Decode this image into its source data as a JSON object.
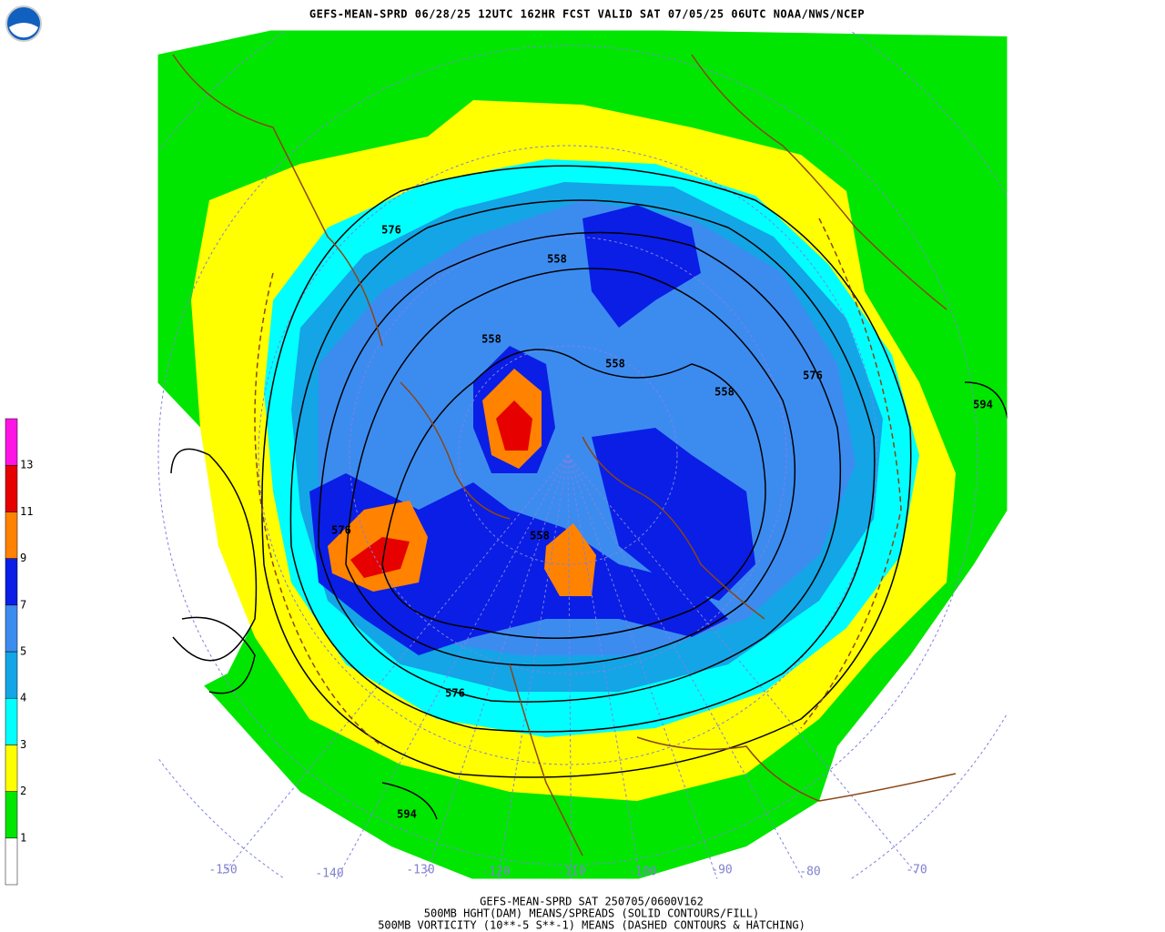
{
  "header": {
    "title": "GEFS-MEAN-SPRD 06/28/25 12UTC 162HR FCST VALID SAT 07/05/25 06UTC NOAA/NWS/NCEP"
  },
  "colorbar": {
    "colors": [
      "#ffffff",
      "#00e600",
      "#ffff00",
      "#00ffff",
      "#14a5e6",
      "#3c8cf0",
      "#0a1ee6",
      "#ff8200",
      "#e60000",
      "#ff14e6"
    ],
    "labels": [
      "1",
      "2",
      "3",
      "4",
      "5",
      "7",
      "9",
      "11",
      "13"
    ]
  },
  "contour_labels": [
    "576",
    "558",
    "558",
    "558",
    "558",
    "576",
    "594",
    "576",
    "594",
    "558",
    "576"
  ],
  "longitude_labels": [
    "-150",
    "-140",
    "-130",
    "-120",
    "-110",
    "-100",
    "-90",
    "-80",
    "-70"
  ],
  "footer": {
    "lines": [
      "GEFS-MEAN-SPRD SAT 250705/0600V162",
      "500MB HGHT(DAM) MEANS/SPREADS (SOLID CONTOURS/FILL)",
      "500MB VORTICITY (10**-5 S**-1) MEANS (DASHED CONTOURS & HATCHING)"
    ]
  }
}
